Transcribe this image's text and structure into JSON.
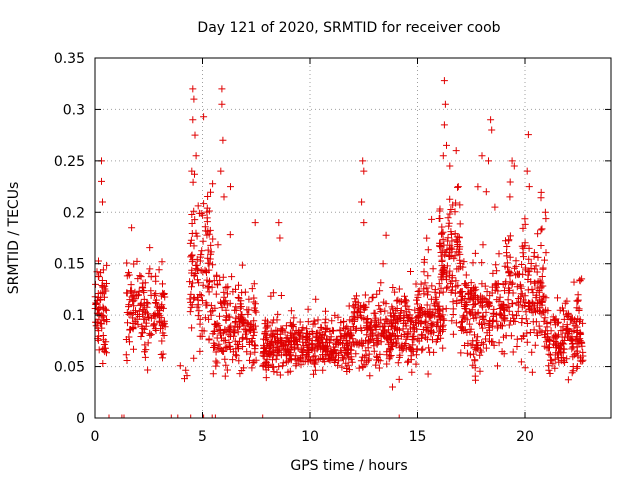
{
  "chart_data": {
    "type": "scatter",
    "title": "Day 121 of 2020, SRMTID for receiver coob",
    "xlabel": "GPS time / hours",
    "ylabel": "SRMTID / TECUs",
    "xlim": [
      0,
      24
    ],
    "ylim": [
      0,
      0.35
    ],
    "x_ticks": [
      0,
      5,
      10,
      15,
      20
    ],
    "x_tick_labels": [
      "0",
      "5",
      "10",
      "15",
      "20"
    ],
    "y_ticks": [
      0,
      0.05,
      0.1,
      0.15,
      0.2,
      0.25,
      0.3,
      0.35
    ],
    "y_tick_labels": [
      "0",
      "0.05",
      "0.1",
      "0.15",
      "0.2",
      "0.25",
      "0.3",
      "0.35"
    ],
    "grid": true,
    "marker": "+",
    "color": "#e00000",
    "zero_points_x": [
      0.65,
      1.25,
      1.35,
      3.55,
      3.85,
      4.45,
      5.05,
      5.45,
      5.6,
      7.8,
      14.15
    ],
    "clusters": [
      {
        "t0": 0.0,
        "t1": 0.55,
        "base": 0.1,
        "spread": 0.035,
        "n": 70
      },
      {
        "t0": 1.45,
        "t1": 3.3,
        "base": 0.1,
        "spread": 0.03,
        "n": 160
      },
      {
        "t0": 3.9,
        "t1": 4.3,
        "base": 0.045,
        "spread": 0.01,
        "n": 4
      },
      {
        "t0": 4.4,
        "t1": 5.5,
        "base": 0.14,
        "spread": 0.06,
        "n": 120
      },
      {
        "t0": 5.5,
        "t1": 7.5,
        "base": 0.085,
        "spread": 0.035,
        "n": 200
      },
      {
        "t0": 7.8,
        "t1": 12.0,
        "base": 0.07,
        "spread": 0.02,
        "n": 420
      },
      {
        "t0": 12.0,
        "t1": 15.0,
        "base": 0.085,
        "spread": 0.03,
        "n": 300
      },
      {
        "t0": 15.0,
        "t1": 16.2,
        "base": 0.1,
        "spread": 0.03,
        "n": 120
      },
      {
        "t0": 16.0,
        "t1": 17.0,
        "base": 0.15,
        "spread": 0.045,
        "n": 120
      },
      {
        "t0": 17.0,
        "t1": 19.0,
        "base": 0.1,
        "spread": 0.04,
        "n": 200
      },
      {
        "t0": 19.0,
        "t1": 21.0,
        "base": 0.12,
        "spread": 0.045,
        "n": 200
      },
      {
        "t0": 21.0,
        "t1": 22.7,
        "base": 0.075,
        "spread": 0.025,
        "n": 170
      }
    ],
    "peaks": [
      {
        "x": 0.3,
        "y": 0.25
      },
      {
        "x": 0.3,
        "y": 0.23
      },
      {
        "x": 0.35,
        "y": 0.21
      },
      {
        "x": 1.7,
        "y": 0.185
      },
      {
        "x": 2.55,
        "y": 0.145
      },
      {
        "x": 4.55,
        "y": 0.32
      },
      {
        "x": 4.6,
        "y": 0.31
      },
      {
        "x": 4.55,
        "y": 0.29
      },
      {
        "x": 4.65,
        "y": 0.275
      },
      {
        "x": 4.7,
        "y": 0.255
      },
      {
        "x": 4.5,
        "y": 0.24
      },
      {
        "x": 5.9,
        "y": 0.32
      },
      {
        "x": 5.9,
        "y": 0.305
      },
      {
        "x": 5.95,
        "y": 0.27
      },
      {
        "x": 5.85,
        "y": 0.24
      },
      {
        "x": 6.3,
        "y": 0.225
      },
      {
        "x": 6.0,
        "y": 0.215
      },
      {
        "x": 7.45,
        "y": 0.19
      },
      {
        "x": 8.55,
        "y": 0.19
      },
      {
        "x": 8.6,
        "y": 0.175
      },
      {
        "x": 12.45,
        "y": 0.25
      },
      {
        "x": 12.5,
        "y": 0.24
      },
      {
        "x": 12.4,
        "y": 0.21
      },
      {
        "x": 12.5,
        "y": 0.19
      },
      {
        "x": 13.4,
        "y": 0.15
      },
      {
        "x": 16.25,
        "y": 0.328
      },
      {
        "x": 16.3,
        "y": 0.305
      },
      {
        "x": 16.25,
        "y": 0.285
      },
      {
        "x": 16.35,
        "y": 0.265
      },
      {
        "x": 16.2,
        "y": 0.255
      },
      {
        "x": 16.5,
        "y": 0.245
      },
      {
        "x": 16.8,
        "y": 0.26
      },
      {
        "x": 16.9,
        "y": 0.225
      },
      {
        "x": 18.4,
        "y": 0.29
      },
      {
        "x": 18.45,
        "y": 0.28
      },
      {
        "x": 18.3,
        "y": 0.25
      },
      {
        "x": 18.0,
        "y": 0.255
      },
      {
        "x": 18.2,
        "y": 0.22
      },
      {
        "x": 18.6,
        "y": 0.205
      },
      {
        "x": 19.4,
        "y": 0.25
      },
      {
        "x": 19.5,
        "y": 0.245
      },
      {
        "x": 19.3,
        "y": 0.215
      },
      {
        "x": 20.1,
        "y": 0.24
      },
      {
        "x": 20.2,
        "y": 0.225
      },
      {
        "x": 20.95,
        "y": 0.2
      }
    ]
  }
}
